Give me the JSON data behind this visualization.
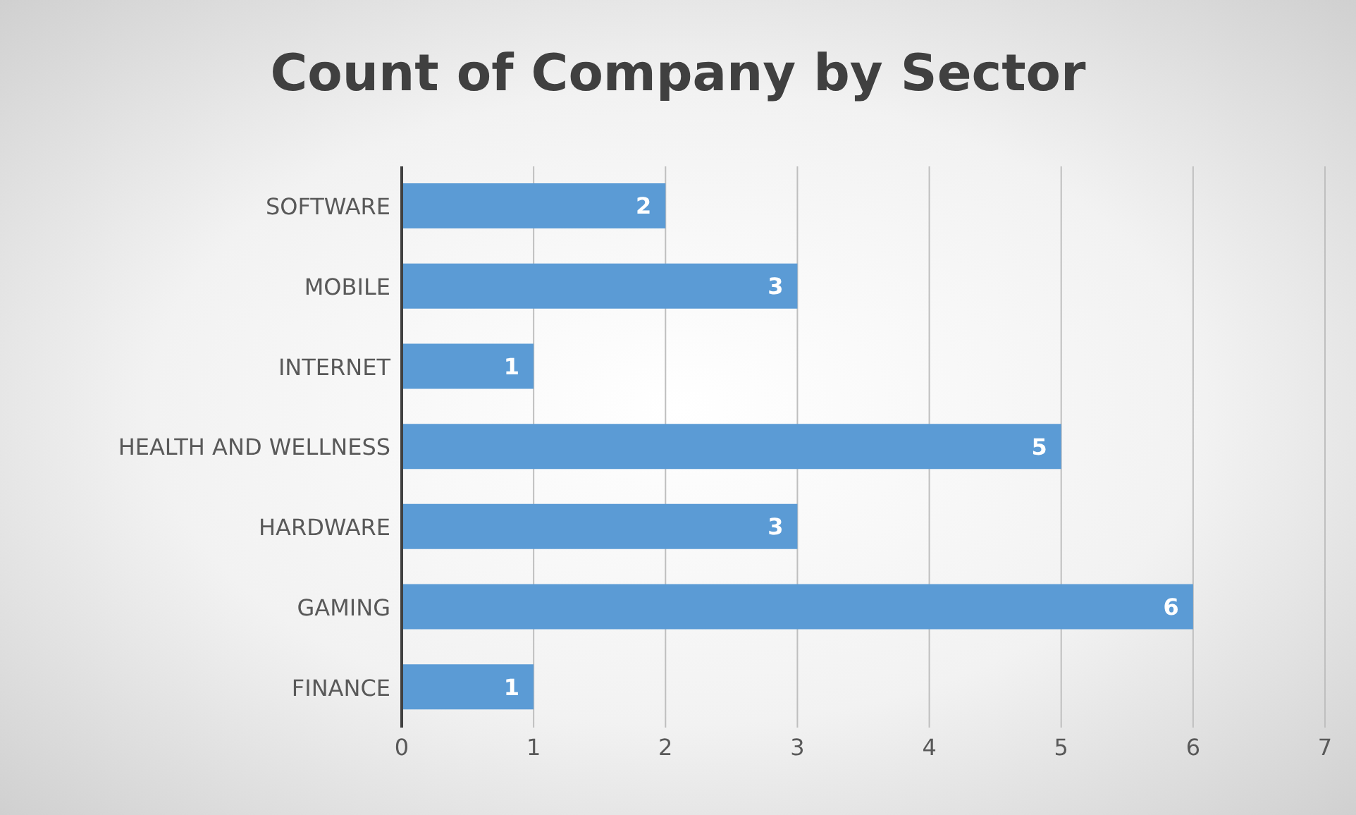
{
  "chart_data": {
    "type": "bar",
    "orientation": "horizontal",
    "title": "Count of Company by Sector",
    "categories": [
      "SOFTWARE",
      "MOBILE",
      "INTERNET",
      "HEALTH AND WELLNESS",
      "HARDWARE",
      "GAMING",
      "FINANCE"
    ],
    "values": [
      2,
      3,
      1,
      5,
      3,
      6,
      1
    ],
    "color": "#5b9bd5",
    "xlim": [
      0,
      7
    ],
    "xticks": [
      0,
      1,
      2,
      3,
      4,
      5,
      6,
      7
    ],
    "grid": "x",
    "data_labels": true
  }
}
